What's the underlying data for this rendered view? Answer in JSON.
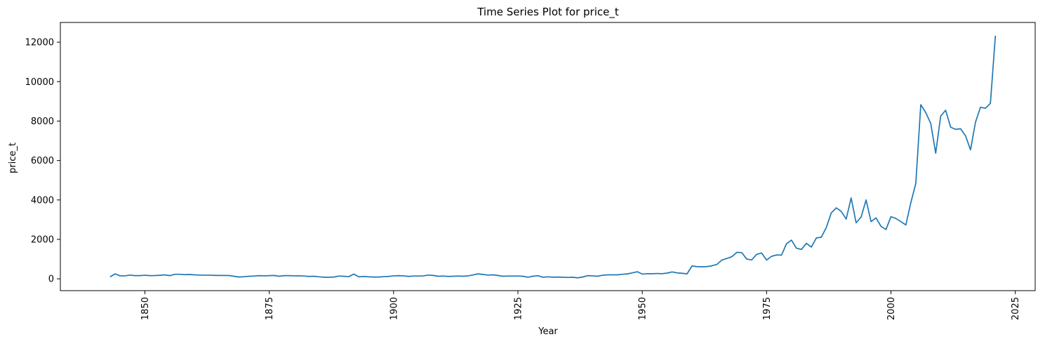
{
  "chart_data": {
    "type": "line",
    "title": "Time Series Plot for price_t",
    "xlabel": "Year",
    "ylabel": "price_t",
    "xlim": [
      1833,
      2029
    ],
    "ylim": [
      -600,
      13000
    ],
    "x_ticks": [
      1850,
      1875,
      1900,
      1925,
      1950,
      1975,
      2000,
      2025
    ],
    "x_tick_labels": [
      "1850",
      "1875",
      "1900",
      "1925",
      "1950",
      "1975",
      "2000",
      "2025"
    ],
    "y_ticks": [
      0,
      2000,
      4000,
      6000,
      8000,
      10000,
      12000
    ],
    "y_tick_labels": [
      "0",
      "2000",
      "4000",
      "6000",
      "8000",
      "10000",
      "12000"
    ],
    "grid": false,
    "series": [
      {
        "color": "#1f77b4",
        "x": [
          1843,
          1844,
          1845,
          1846,
          1847,
          1848,
          1849,
          1850,
          1851,
          1852,
          1853,
          1854,
          1855,
          1856,
          1857,
          1858,
          1859,
          1860,
          1861,
          1862,
          1863,
          1864,
          1865,
          1866,
          1867,
          1868,
          1869,
          1870,
          1871,
          1872,
          1873,
          1874,
          1875,
          1876,
          1877,
          1878,
          1879,
          1880,
          1881,
          1882,
          1883,
          1884,
          1885,
          1886,
          1887,
          1888,
          1889,
          1890,
          1891,
          1892,
          1893,
          1894,
          1895,
          1896,
          1897,
          1898,
          1899,
          1900,
          1901,
          1902,
          1903,
          1904,
          1905,
          1906,
          1907,
          1908,
          1909,
          1910,
          1911,
          1912,
          1913,
          1914,
          1915,
          1916,
          1917,
          1918,
          1919,
          1920,
          1921,
          1922,
          1923,
          1924,
          1925,
          1926,
          1927,
          1928,
          1929,
          1930,
          1931,
          1932,
          1933,
          1934,
          1935,
          1936,
          1937,
          1938,
          1939,
          1940,
          1941,
          1942,
          1943,
          1944,
          1945,
          1946,
          1947,
          1948,
          1949,
          1950,
          1951,
          1952,
          1953,
          1954,
          1955,
          1956,
          1957,
          1958,
          1959,
          1960,
          1961,
          1962,
          1963,
          1964,
          1965,
          1966,
          1967,
          1968,
          1969,
          1970,
          1971,
          1972,
          1973,
          1974,
          1975,
          1976,
          1977,
          1978,
          1979,
          1980,
          1981,
          1982,
          1983,
          1984,
          1985,
          1986,
          1987,
          1988,
          1989,
          1990,
          1991,
          1992,
          1993,
          1994,
          1995,
          1996,
          1997,
          1998,
          1999,
          2000,
          2001,
          2002,
          2003,
          2004,
          2005,
          2006,
          2007,
          2008,
          2009,
          2010,
          2011,
          2012,
          2013,
          2014,
          2015,
          2016,
          2017,
          2018,
          2019,
          2020,
          2021
        ],
        "y": [
          100,
          250,
          150,
          150,
          190,
          160,
          160,
          180,
          160,
          165,
          180,
          200,
          160,
          230,
          230,
          210,
          220,
          200,
          190,
          185,
          185,
          175,
          170,
          170,
          165,
          125,
          90,
          110,
          130,
          140,
          160,
          150,
          160,
          170,
          130,
          160,
          160,
          150,
          155,
          140,
          120,
          130,
          100,
          80,
          80,
          90,
          140,
          130,
          110,
          240,
          100,
          120,
          100,
          90,
          90,
          110,
          120,
          150,
          160,
          150,
          120,
          140,
          140,
          150,
          190,
          170,
          130,
          140,
          120,
          130,
          140,
          130,
          150,
          200,
          250,
          220,
          190,
          200,
          170,
          130,
          140,
          140,
          140,
          130,
          80,
          130,
          160,
          80,
          100,
          80,
          90,
          80,
          70,
          80,
          50,
          90,
          160,
          150,
          130,
          180,
          200,
          200,
          200,
          230,
          250,
          300,
          360,
          240,
          260,
          260,
          270,
          260,
          290,
          350,
          300,
          280,
          250,
          650,
          620,
          610,
          620,
          660,
          730,
          950,
          1030,
          1120,
          1340,
          1330,
          1000,
          960,
          1240,
          1310,
          950,
          1140,
          1210,
          1200,
          1780,
          1960,
          1550,
          1490,
          1800,
          1610,
          2070,
          2110,
          2600,
          3340,
          3600,
          3420,
          3030,
          4100,
          2840,
          3130,
          4000,
          2900,
          3090,
          2660,
          2500,
          3150,
          3060,
          2900,
          2730,
          3860,
          4840,
          8830,
          8430,
          7880,
          6370,
          8250,
          8550,
          7690,
          7580,
          7610,
          7250,
          6540,
          7940,
          8700,
          8650,
          8900,
          12330
        ]
      }
    ]
  }
}
